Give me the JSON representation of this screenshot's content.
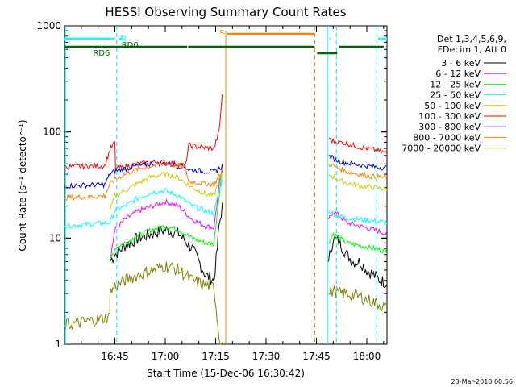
{
  "chart_data": {
    "type": "line",
    "title": "HESSI Observing Summary Count Rates",
    "xlabel": "Start Time (15-Dec-06 16:30:42)",
    "ylabel": "Count Rate (s⁻¹ detector⁻¹)",
    "y_scale": "log",
    "ylim": [
      1,
      1000
    ],
    "xlim_minutes": [
      0,
      96
    ],
    "x_ticks": [
      {
        "value": 15,
        "label": "16:45"
      },
      {
        "value": 30,
        "label": "17:00"
      },
      {
        "value": 45,
        "label": "17:15"
      },
      {
        "value": 60,
        "label": "17:30"
      },
      {
        "value": 75,
        "label": "17:45"
      },
      {
        "value": 90,
        "label": "18:00"
      }
    ],
    "y_ticks": [
      {
        "value": 1,
        "label": "1"
      },
      {
        "value": 10,
        "label": "10"
      },
      {
        "value": 100,
        "label": "100"
      },
      {
        "value": 1000,
        "label": "1000"
      }
    ],
    "legend": {
      "header": [
        "Det 1,3,4,5,6,9,",
        "FDecim 1, Att 0"
      ],
      "placement": "right"
    },
    "series": [
      {
        "name": "3 - 6 keV",
        "color": "#000000",
        "pts": [
          [
            0,
            null
          ],
          [
            13.5,
            null
          ],
          [
            13.5,
            6
          ],
          [
            15,
            7
          ],
          [
            18,
            8.5
          ],
          [
            22,
            10
          ],
          [
            26,
            11
          ],
          [
            30,
            12
          ],
          [
            34,
            11
          ],
          [
            38,
            8
          ],
          [
            40,
            6
          ],
          [
            42,
            4.5
          ],
          [
            44.5,
            4
          ],
          [
            45.5,
            8
          ],
          [
            46,
            13
          ],
          [
            47,
            20
          ]
        ],
        "pts2": [
          [
            78.6,
            null
          ],
          [
            78.6,
            6
          ],
          [
            80,
            10
          ],
          [
            82,
            9
          ],
          [
            84,
            7
          ],
          [
            86,
            6
          ],
          [
            88,
            6
          ],
          [
            90,
            5
          ],
          [
            92,
            4.5
          ],
          [
            94,
            4
          ],
          [
            96,
            3.8
          ]
        ]
      },
      {
        "name": "6 - 12 keV",
        "color": "#ff00ff",
        "pts": [
          [
            13.5,
            6
          ],
          [
            15,
            12
          ],
          [
            18,
            15
          ],
          [
            22,
            18
          ],
          [
            26,
            20
          ],
          [
            30,
            22
          ],
          [
            34,
            20
          ],
          [
            38,
            15
          ],
          [
            42,
            13
          ],
          [
            44.5,
            12.5
          ],
          [
            46,
            30
          ],
          [
            47,
            48
          ]
        ],
        "pts2": [
          [
            78.6,
            null
          ],
          [
            78.6,
            15
          ],
          [
            80,
            18
          ],
          [
            82,
            16
          ],
          [
            84,
            14
          ],
          [
            88,
            13
          ],
          [
            92,
            12
          ],
          [
            96,
            11
          ]
        ]
      },
      {
        "name": "12 - 25 keV",
        "color": "#00ff00",
        "pts": [
          [
            13.5,
            6
          ],
          [
            15,
            8
          ],
          [
            18,
            9
          ],
          [
            22,
            10.5
          ],
          [
            26,
            12
          ],
          [
            30,
            13
          ],
          [
            34,
            12
          ],
          [
            38,
            10
          ],
          [
            42,
            9
          ],
          [
            44.5,
            8.8
          ],
          [
            46,
            25
          ],
          [
            47,
            45
          ]
        ],
        "pts2": [
          [
            78.6,
            null
          ],
          [
            78.6,
            9
          ],
          [
            80,
            11
          ],
          [
            82,
            10
          ],
          [
            84,
            9
          ],
          [
            88,
            8.5
          ],
          [
            92,
            8
          ],
          [
            96,
            7.5
          ]
        ]
      },
      {
        "name": "25 - 50 keV",
        "color": "#00ffff",
        "pts": [
          [
            0,
            13
          ],
          [
            13.5,
            14
          ],
          [
            15,
            18
          ],
          [
            18,
            20
          ],
          [
            22,
            24
          ],
          [
            26,
            27
          ],
          [
            30,
            28
          ],
          [
            34,
            25
          ],
          [
            38,
            20
          ],
          [
            42,
            18
          ],
          [
            44.5,
            17
          ],
          [
            46,
            28
          ],
          [
            47,
            35
          ]
        ],
        "pts2": [
          [
            78.6,
            null
          ],
          [
            78.6,
            18
          ],
          [
            80,
            17
          ],
          [
            82,
            16
          ],
          [
            84,
            15.5
          ],
          [
            88,
            15
          ],
          [
            92,
            14.5
          ],
          [
            96,
            14
          ]
        ]
      },
      {
        "name": "50 - 100 keV",
        "color": "#cccc00",
        "pts": [
          [
            13.5,
            18
          ],
          [
            15,
            25
          ],
          [
            18,
            28
          ],
          [
            22,
            33
          ],
          [
            26,
            38
          ],
          [
            30,
            40
          ],
          [
            34,
            37
          ],
          [
            38,
            30
          ],
          [
            42,
            26
          ],
          [
            44.5,
            25
          ],
          [
            46,
            35
          ],
          [
            47,
            40
          ]
        ],
        "pts2": [
          [
            78.6,
            null
          ],
          [
            78.6,
            40
          ],
          [
            80,
            38
          ],
          [
            82,
            35
          ],
          [
            84,
            33
          ],
          [
            88,
            31
          ],
          [
            92,
            30
          ],
          [
            96,
            29
          ]
        ]
      },
      {
        "name": "100 - 300 keV",
        "color": "#ff0000",
        "pts": [
          [
            0,
            47
          ],
          [
            12,
            48
          ],
          [
            13.5,
            68
          ],
          [
            15,
            80
          ],
          [
            15.2,
            45
          ],
          [
            18,
            47
          ],
          [
            22,
            50
          ],
          [
            26,
            52
          ],
          [
            30,
            52
          ],
          [
            34,
            50
          ],
          [
            36,
            48
          ],
          [
            37,
            75
          ],
          [
            40,
            72
          ],
          [
            44.5,
            70
          ],
          [
            46,
            100
          ],
          [
            47,
            230
          ]
        ],
        "pts2": [
          [
            78.6,
            null
          ],
          [
            78.6,
            85
          ],
          [
            80,
            82
          ],
          [
            82,
            80
          ],
          [
            84,
            78
          ],
          [
            88,
            72
          ],
          [
            92,
            68
          ],
          [
            96,
            63
          ]
        ]
      },
      {
        "name": "300 - 800 keV",
        "color": "#0000cc",
        "pts": [
          [
            0,
            31
          ],
          [
            12,
            32
          ],
          [
            13.5,
            40
          ],
          [
            15,
            43
          ],
          [
            18,
            45
          ],
          [
            22,
            48
          ],
          [
            26,
            50
          ],
          [
            30,
            50
          ],
          [
            34,
            48
          ],
          [
            36,
            47
          ],
          [
            37,
            44
          ],
          [
            44.5,
            42
          ],
          [
            46,
            45
          ],
          [
            47,
            48
          ]
        ],
        "pts2": [
          [
            78.6,
            null
          ],
          [
            78.6,
            60
          ],
          [
            80,
            56
          ],
          [
            82,
            53
          ],
          [
            84,
            51
          ],
          [
            88,
            49
          ],
          [
            92,
            47
          ],
          [
            96,
            46
          ]
        ]
      },
      {
        "name": "800 - 7000 keV",
        "color": "#ff8000",
        "pts": [
          [
            0,
            24
          ],
          [
            12,
            25
          ],
          [
            13.5,
            32
          ],
          [
            15,
            36
          ],
          [
            18,
            40
          ],
          [
            22,
            45
          ],
          [
            26,
            48
          ],
          [
            30,
            50
          ],
          [
            34,
            48
          ],
          [
            36,
            46
          ],
          [
            37,
            34
          ],
          [
            44.5,
            32
          ],
          [
            46,
            38
          ],
          [
            47,
            42
          ]
        ],
        "pts2": [
          [
            78.6,
            null
          ],
          [
            78.6,
            50
          ],
          [
            80,
            48
          ],
          [
            82,
            45
          ],
          [
            84,
            42
          ],
          [
            88,
            40
          ],
          [
            92,
            38
          ],
          [
            96,
            37
          ]
        ]
      },
      {
        "name": "7000 - 20000 keV",
        "color": "#808000",
        "pts": [
          [
            0,
            1.5
          ],
          [
            13.5,
            1.8
          ],
          [
            13.5,
            3
          ],
          [
            15,
            3.5
          ],
          [
            18,
            4
          ],
          [
            22,
            4.5
          ],
          [
            26,
            5
          ],
          [
            30,
            5.5
          ],
          [
            34,
            5
          ],
          [
            38,
            4
          ],
          [
            42,
            3.6
          ],
          [
            44.5,
            3.5
          ],
          [
            46,
            1.2
          ],
          [
            47,
            1
          ]
        ],
        "pts2": [
          [
            78.6,
            null
          ],
          [
            78.6,
            3
          ],
          [
            80,
            3.2
          ],
          [
            82,
            3
          ],
          [
            84,
            3
          ],
          [
            88,
            2.8
          ],
          [
            92,
            2.5
          ],
          [
            96,
            2.2
          ]
        ]
      }
    ],
    "annotations": {
      "att_labels": [
        {
          "text": "N",
          "color": "#00ffff"
        },
        {
          "text": "RD0",
          "color": "#006400"
        },
        {
          "text": "RD6",
          "color": "#006400"
        },
        {
          "text": "S",
          "color": "#ff8000"
        }
      ]
    },
    "timestamp": "23-Mar-2010 00:56"
  }
}
